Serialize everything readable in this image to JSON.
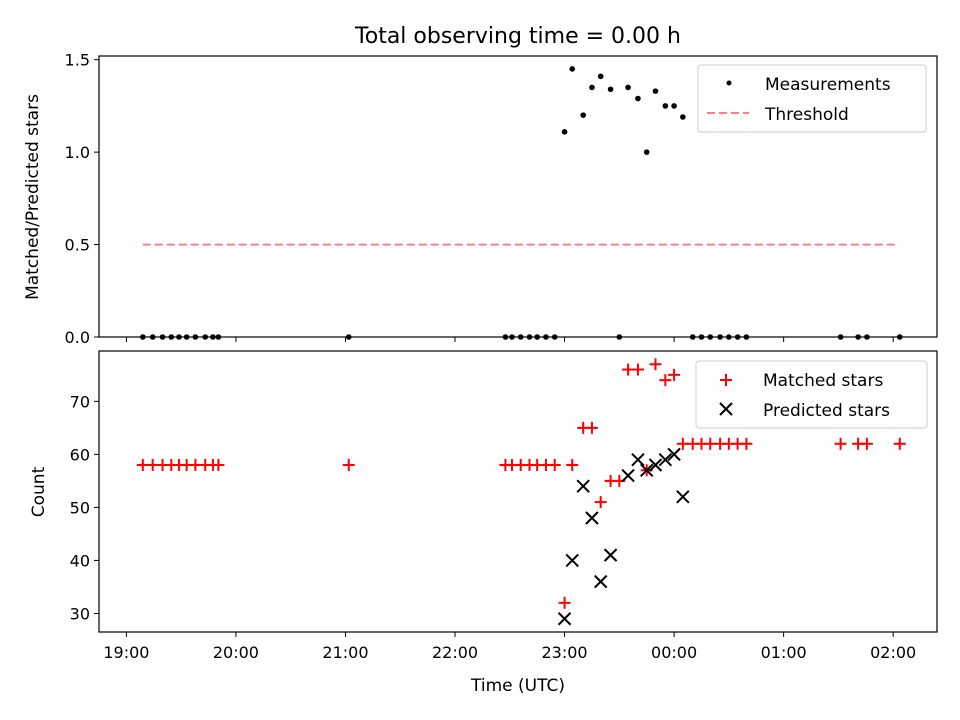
{
  "title": "Total observing time = 0.00 h",
  "chart_data": [
    {
      "type": "scatter",
      "ylabel": "Matched/Predicted stars",
      "xlabel": "",
      "xlim": [
        18.75,
        26.4
      ],
      "ylim": [
        0,
        1.52
      ],
      "x_tick_values": [
        19,
        20,
        21,
        22,
        23,
        24,
        25,
        26
      ],
      "y_ticks": [
        0.0,
        0.5,
        1.0,
        1.5
      ],
      "y_tick_labels": [
        "0.0",
        "0.5",
        "1.0",
        "1.5"
      ],
      "legend_position": "top-right",
      "legend": [
        {
          "label": "Measurements",
          "color": "#000000",
          "marker": "dot"
        },
        {
          "label": "Threshold",
          "color": "#ff7f7f",
          "style": "dashed"
        }
      ],
      "threshold": {
        "y": 0.5,
        "x_start": 19.15,
        "x_end": 26.03,
        "color": "#ff7f7f"
      },
      "series": [
        {
          "name": "Measurements",
          "color": "#000000",
          "marker": "dot",
          "points": [
            [
              19.15,
              0
            ],
            [
              19.24,
              0
            ],
            [
              19.33,
              0
            ],
            [
              19.41,
              0
            ],
            [
              19.48,
              0
            ],
            [
              19.55,
              0
            ],
            [
              19.63,
              0
            ],
            [
              19.72,
              0
            ],
            [
              19.79,
              0
            ],
            [
              19.84,
              0
            ],
            [
              21.03,
              0
            ],
            [
              22.46,
              0
            ],
            [
              22.52,
              0
            ],
            [
              22.6,
              0
            ],
            [
              22.68,
              0
            ],
            [
              22.75,
              0
            ],
            [
              22.83,
              0
            ],
            [
              22.91,
              0
            ],
            [
              23.0,
              1.11
            ],
            [
              23.07,
              1.45
            ],
            [
              23.17,
              1.2
            ],
            [
              23.25,
              1.35
            ],
            [
              23.33,
              1.41
            ],
            [
              23.42,
              1.34
            ],
            [
              23.5,
              0
            ],
            [
              23.58,
              1.35
            ],
            [
              23.67,
              1.29
            ],
            [
              23.75,
              1.0
            ],
            [
              23.83,
              1.33
            ],
            [
              23.92,
              1.25
            ],
            [
              24.0,
              1.25
            ],
            [
              24.08,
              1.19
            ],
            [
              24.17,
              0
            ],
            [
              24.25,
              0
            ],
            [
              24.33,
              0
            ],
            [
              24.42,
              0
            ],
            [
              24.5,
              0
            ],
            [
              24.58,
              0
            ],
            [
              24.66,
              0
            ],
            [
              25.52,
              0
            ],
            [
              25.68,
              0
            ],
            [
              25.76,
              0
            ],
            [
              26.06,
              0
            ]
          ]
        }
      ]
    },
    {
      "type": "scatter",
      "ylabel": "Count",
      "xlabel": "Time (UTC)",
      "xlim": [
        18.75,
        26.4
      ],
      "ylim": [
        26.5,
        79.5
      ],
      "x_tick_values": [
        19,
        20,
        21,
        22,
        23,
        24,
        25,
        26
      ],
      "x_tick_labels": [
        "19:00",
        "20:00",
        "21:00",
        "22:00",
        "23:00",
        "00:00",
        "01:00",
        "02:00"
      ],
      "y_ticks": [
        30,
        40,
        50,
        60,
        70
      ],
      "y_tick_labels": [
        "30",
        "40",
        "50",
        "60",
        "70"
      ],
      "legend_position": "top-right",
      "legend": [
        {
          "label": "Matched stars",
          "color": "#ff0000",
          "marker": "plus"
        },
        {
          "label": "Predicted stars",
          "color": "#000000",
          "marker": "x"
        }
      ],
      "series": [
        {
          "name": "Matched stars",
          "color": "#ff0000",
          "marker": "plus",
          "points": [
            [
              19.15,
              58
            ],
            [
              19.24,
              58
            ],
            [
              19.33,
              58
            ],
            [
              19.41,
              58
            ],
            [
              19.48,
              58
            ],
            [
              19.55,
              58
            ],
            [
              19.63,
              58
            ],
            [
              19.72,
              58
            ],
            [
              19.79,
              58
            ],
            [
              19.84,
              58
            ],
            [
              21.03,
              58
            ],
            [
              22.46,
              58
            ],
            [
              22.52,
              58
            ],
            [
              22.6,
              58
            ],
            [
              22.68,
              58
            ],
            [
              22.75,
              58
            ],
            [
              22.83,
              58
            ],
            [
              22.91,
              58
            ],
            [
              23.0,
              32
            ],
            [
              23.07,
              58
            ],
            [
              23.17,
              65
            ],
            [
              23.25,
              65
            ],
            [
              23.33,
              51
            ],
            [
              23.42,
              55
            ],
            [
              23.5,
              55
            ],
            [
              23.58,
              76
            ],
            [
              23.67,
              76
            ],
            [
              23.75,
              57
            ],
            [
              23.83,
              77
            ],
            [
              23.92,
              74
            ],
            [
              24.0,
              75
            ],
            [
              24.08,
              62
            ],
            [
              24.17,
              62
            ],
            [
              24.25,
              62
            ],
            [
              24.33,
              62
            ],
            [
              24.42,
              62
            ],
            [
              24.5,
              62
            ],
            [
              24.58,
              62
            ],
            [
              24.66,
              62
            ],
            [
              25.52,
              62
            ],
            [
              25.68,
              62
            ],
            [
              25.76,
              62
            ],
            [
              26.06,
              62
            ]
          ]
        },
        {
          "name": "Predicted stars",
          "color": "#000000",
          "marker": "x",
          "points": [
            [
              23.0,
              29
            ],
            [
              23.07,
              40
            ],
            [
              23.17,
              54
            ],
            [
              23.25,
              48
            ],
            [
              23.33,
              36
            ],
            [
              23.42,
              41
            ],
            [
              23.58,
              56
            ],
            [
              23.67,
              59
            ],
            [
              23.75,
              57
            ],
            [
              23.83,
              58
            ],
            [
              23.92,
              59
            ],
            [
              24.0,
              60
            ],
            [
              24.08,
              52
            ]
          ]
        }
      ]
    }
  ]
}
